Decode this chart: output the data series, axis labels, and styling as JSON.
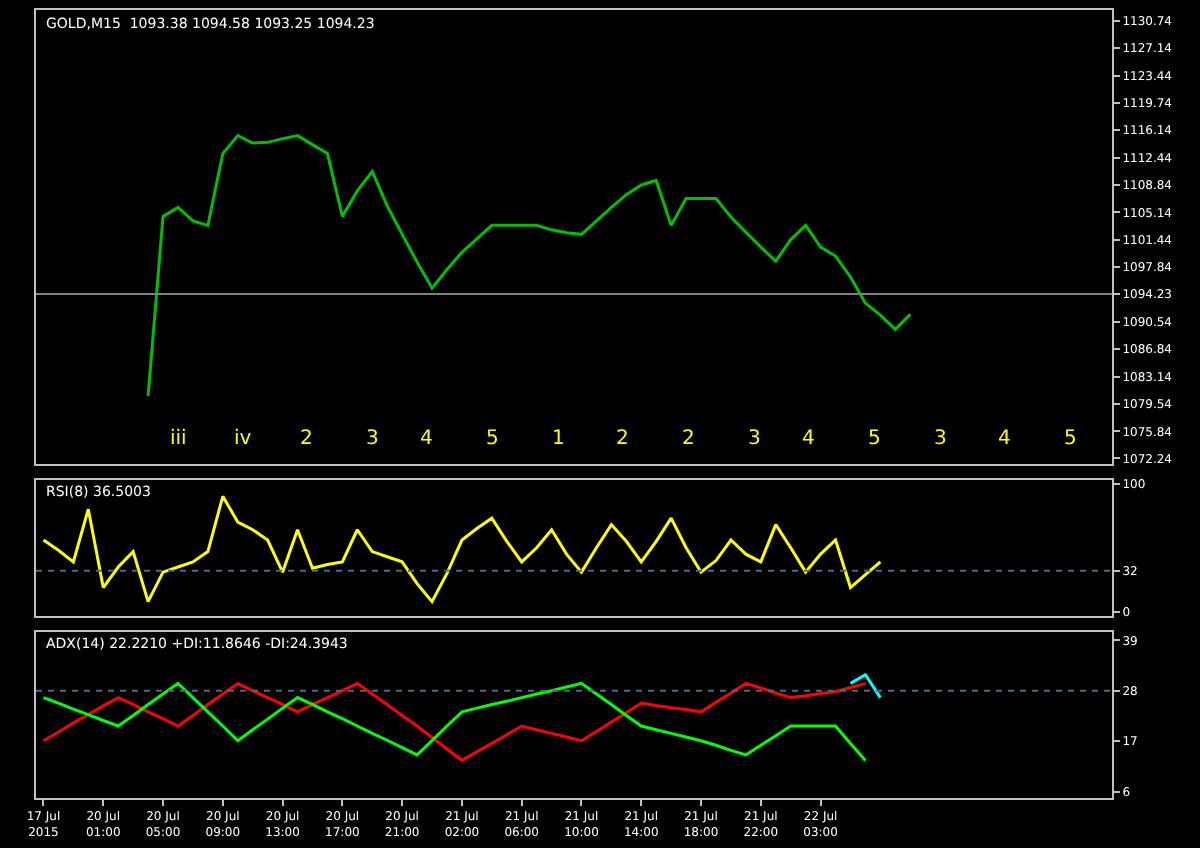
{
  "chart_data": [
    {
      "type": "line",
      "title": "GOLD,M15  1093.38 1094.58 1093.25 1094.23",
      "ylim": [
        1071.5,
        1132.2
      ],
      "grid": false,
      "yticks": [
        1130.74,
        1127.14,
        1123.44,
        1119.74,
        1116.14,
        1112.44,
        1108.84,
        1105.14,
        1101.44,
        1097.84,
        1094.23,
        1090.54,
        1086.84,
        1083.14,
        1079.54,
        1075.84,
        1072.24
      ],
      "categories": [
        null,
        null,
        null,
        null,
        null,
        null,
        null,
        null,
        null,
        null,
        null,
        null,
        null,
        null,
        null,
        null,
        null,
        null,
        null,
        null,
        null,
        null,
        null,
        null,
        null,
        null,
        null,
        null,
        null,
        null,
        null,
        null,
        null,
        null,
        null,
        null,
        null,
        null,
        null,
        null,
        null,
        null,
        null,
        null,
        null,
        null,
        null,
        null,
        null,
        null,
        null,
        null,
        null,
        null,
        null,
        null,
        null,
        null,
        null,
        null,
        null,
        null,
        null,
        null,
        null,
        null,
        null,
        null,
        null,
        null,
        null,
        null
      ],
      "series": [
        {
          "color": "#00c000",
          "values": [
            null,
            null,
            null,
            null,
            null,
            null,
            null,
            1080.6,
            1104.6,
            1105.8,
            1104.0,
            1103.4,
            1113.0,
            1115.4,
            1114.4,
            1114.5,
            1115.0,
            1115.4,
            1114.2,
            1113.0,
            1104.6,
            1108.0,
            1110.6,
            1106.0,
            1102.2,
            1098.5,
            1095.0,
            1097.5,
            1099.8,
            1101.6,
            1103.4,
            1103.4,
            1103.4,
            1103.4,
            1102.8,
            1102.4,
            1102.2,
            1104.0,
            1105.8,
            1107.5,
            1108.8,
            1109.4,
            1103.4,
            1107.0,
            1107.0,
            1107.0,
            1104.5,
            1102.5,
            1100.5,
            1098.6,
            1101.5,
            1103.4,
            1100.5,
            1099.3,
            1096.5,
            1093.0,
            1091.4,
            1089.5,
            1091.5,
            null,
            null,
            null,
            null,
            null,
            null,
            null,
            null,
            null,
            null,
            null,
            null,
            null
          ]
        }
      ],
      "ref_lines": [
        {
          "axis": "y",
          "value": 1094.23,
          "color": "#808080"
        }
      ],
      "annotations": [
        "iii",
        "iv",
        "2",
        "3",
        "4",
        "5",
        "1",
        "2",
        "2",
        "3",
        "4",
        "5",
        "3",
        "4",
        "5"
      ]
    },
    {
      "type": "line",
      "title": "RSI(8) 36.5003",
      "ylim": [
        -3,
        103
      ],
      "yticks": [
        100,
        32,
        0
      ],
      "grid": false,
      "categories": [
        null,
        null,
        null,
        null,
        null,
        null,
        null,
        null,
        null,
        null,
        null,
        null,
        null,
        null,
        null,
        null,
        null,
        null,
        null,
        null,
        null,
        null,
        null,
        null,
        null,
        null,
        null,
        null,
        null,
        null,
        null,
        null,
        null,
        null,
        null,
        null,
        null,
        null,
        null,
        null,
        null,
        null,
        null,
        null,
        null,
        null,
        null,
        null,
        null,
        null,
        null,
        null,
        null,
        null,
        null,
        null,
        null,
        null,
        null,
        null,
        null,
        null,
        null,
        null,
        null,
        null,
        null,
        null,
        null,
        null,
        null,
        null
      ],
      "series": [
        {
          "color": "#ffff00",
          "values": [
            56,
            48,
            39,
            80,
            19,
            35,
            47,
            8,
            31,
            35,
            39,
            47,
            90,
            70,
            64,
            56,
            31,
            64,
            34,
            37,
            39,
            64,
            47,
            43,
            39,
            22,
            8,
            30,
            56,
            65,
            73,
            55,
            39,
            50,
            64,
            45,
            31,
            50,
            68,
            55,
            39,
            55,
            73,
            50,
            31,
            40,
            56,
            45,
            39,
            68,
            50,
            31,
            45,
            56,
            19,
            29,
            39,
            null,
            null,
            null,
            null,
            null,
            null,
            null,
            null,
            null,
            null,
            null,
            null,
            null,
            null,
            null
          ]
        }
      ],
      "ref_lines": [
        {
          "axis": "y",
          "value": 32,
          "color": "#4a6a8a",
          "line_style": "dotted"
        }
      ]
    },
    {
      "type": "line",
      "title": "ADX(14) 22.2210 +DI:11.8646 -DI:24.3943",
      "ylim": [
        4.6,
        40.9
      ],
      "yticks": [
        39,
        28,
        17,
        6
      ],
      "grid": false,
      "categories": [
        "17 Jul 2015",
        null,
        null,
        null,
        "20 Jul 01:00",
        null,
        null,
        null,
        "20 Jul 05:00",
        null,
        null,
        null,
        "20 Jul 09:00",
        null,
        null,
        null,
        "20 Jul 13:00",
        null,
        null,
        null,
        "20 Jul 17:00",
        null,
        null,
        null,
        "20 Jul 21:00",
        null,
        null,
        null,
        "21 Jul 02:00",
        null,
        null,
        null,
        "21 Jul 06:00",
        null,
        null,
        null,
        "21 Jul 10:00",
        null,
        null,
        null,
        "21 Jul 14:00",
        null,
        null,
        null,
        "21 Jul 18:00",
        null,
        null,
        null,
        "21 Jul 22:00",
        null,
        null,
        null,
        "22 Jul 03:00",
        null,
        null,
        null,
        null,
        null,
        null,
        null,
        null,
        null,
        null,
        null,
        null,
        null,
        null,
        null,
        null,
        null,
        null,
        null
      ],
      "series": [
        {
          "color": "#ff0000",
          "values": [
            17.1,
            19.0,
            21.0,
            22.8,
            24.7,
            26.5,
            25.0,
            23.4,
            21.9,
            20.3,
            22.6,
            25.0,
            27.3,
            29.6,
            28.0,
            26.5,
            25.0,
            23.4,
            25.0,
            26.5,
            28.0,
            29.6,
            27.3,
            25.0,
            22.6,
            20.3,
            17.8,
            15.3,
            12.8,
            14.7,
            16.5,
            18.4,
            20.3,
            19.5,
            18.7,
            17.9,
            17.1,
            19.1,
            21.2,
            23.2,
            25.3,
            24.8,
            24.3,
            23.9,
            23.4,
            25.5,
            27.5,
            29.6,
            28.6,
            27.5,
            26.5,
            26.9,
            27.4,
            27.8,
            28.7,
            29.6,
            null,
            null,
            null,
            null,
            null,
            null,
            null,
            null,
            null,
            null,
            null,
            null,
            null,
            null,
            null,
            null
          ]
        },
        {
          "color": "#00ff00",
          "values": [
            26.5,
            25.3,
            24.0,
            22.8,
            21.5,
            20.3,
            22.6,
            25.0,
            27.3,
            29.6,
            26.5,
            23.4,
            20.3,
            17.1,
            19.5,
            21.8,
            24.2,
            26.5,
            25.0,
            23.4,
            21.9,
            20.3,
            18.7,
            17.2,
            15.6,
            14.0,
            17.1,
            20.3,
            23.4,
            24.2,
            25.0,
            25.7,
            26.5,
            27.3,
            28.0,
            28.8,
            29.6,
            27.3,
            25.0,
            22.6,
            20.3,
            19.5,
            18.7,
            17.9,
            17.1,
            16.1,
            15.0,
            14.0,
            16.1,
            18.2,
            20.3,
            20.3,
            20.3,
            20.3,
            16.5,
            12.8,
            null,
            null,
            null,
            null,
            null,
            null,
            null,
            null,
            null,
            null,
            null,
            null,
            null,
            null,
            null,
            null
          ]
        },
        {
          "color": "#00ffff",
          "values": [
            null,
            null,
            null,
            null,
            null,
            null,
            null,
            null,
            null,
            null,
            null,
            null,
            null,
            null,
            null,
            null,
            null,
            null,
            null,
            null,
            null,
            null,
            null,
            null,
            null,
            null,
            null,
            null,
            null,
            null,
            null,
            null,
            null,
            null,
            null,
            null,
            null,
            null,
            null,
            null,
            null,
            null,
            null,
            null,
            null,
            null,
            null,
            null,
            null,
            null,
            null,
            null,
            null,
            null,
            29.6,
            31.5,
            26.5,
            null,
            null,
            null,
            null,
            null,
            null,
            null,
            null,
            null,
            null,
            null,
            null,
            null,
            null,
            null
          ]
        }
      ],
      "ref_lines": [
        {
          "axis": "y",
          "value": 28,
          "color": "#4a6a8a",
          "line_style": "dotted"
        }
      ]
    }
  ]
}
